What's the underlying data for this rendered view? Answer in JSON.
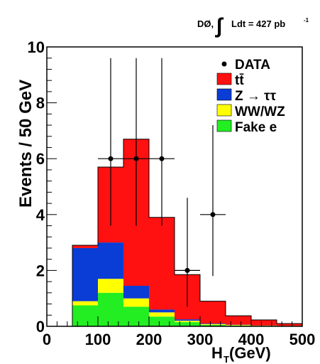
{
  "header": {
    "experiment": "DØ,",
    "integral_symbol": "∫",
    "luminosity": "Ldt = 427 pb",
    "luminosity_exp": "-1"
  },
  "chart_data": {
    "type": "stacked-histogram",
    "xlabel": "H",
    "xlabel_sub": "T",
    "xlabel_unit": " (GeV)",
    "ylabel": "Events / 50 GeV",
    "xlim": [
      0,
      500
    ],
    "ylim": [
      0,
      10
    ],
    "xticks": [
      0,
      100,
      200,
      300,
      400,
      500
    ],
    "yticks": [
      0,
      2,
      4,
      6,
      8,
      10
    ],
    "bin_edges": [
      50,
      100,
      150,
      200,
      250,
      300,
      350,
      400,
      450,
      500
    ],
    "legend_placement": "top-right",
    "series": [
      {
        "name": "Fake e",
        "color": "#22ee22",
        "values": [
          0.75,
          1.2,
          0.7,
          0.35,
          0.15,
          0.05,
          0.03,
          0.02,
          0.01
        ]
      },
      {
        "name": "WW/WZ",
        "color": "#ffff00",
        "values": [
          0.15,
          0.5,
          0.3,
          0.15,
          0.05,
          0.03,
          0.02,
          0.01,
          0.01
        ]
      },
      {
        "name": "Z → ττ",
        "color": "#0a3cd6",
        "values": [
          1.9,
          1.3,
          0.45,
          0.1,
          0.05,
          0.02,
          0.01,
          0.0,
          0.0
        ]
      },
      {
        "name": "tt̄",
        "color": "#ff1111",
        "values": [
          0.1,
          2.7,
          5.25,
          3.3,
          1.6,
          0.8,
          0.32,
          0.2,
          0.08
        ]
      }
    ],
    "data_points": {
      "name": "DATA",
      "x": [
        125,
        175,
        225,
        275,
        325
      ],
      "y": [
        6,
        6,
        6,
        2,
        4
      ],
      "x_err": [
        25,
        25,
        25,
        25,
        25
      ],
      "y_low": [
        3.6,
        3.6,
        3.6,
        0.7,
        1.8
      ],
      "y_high": [
        9.6,
        9.6,
        9.6,
        4.6,
        7.2
      ]
    },
    "legend": [
      {
        "label": "DATA",
        "marker": "dot"
      },
      {
        "label": "tt̄",
        "color": "#ff1111"
      },
      {
        "label": "Z → ττ",
        "color": "#0a3cd6"
      },
      {
        "label": "WW/WZ",
        "color": "#ffff00"
      },
      {
        "label": "Fake e",
        "color": "#22ee22"
      }
    ]
  }
}
